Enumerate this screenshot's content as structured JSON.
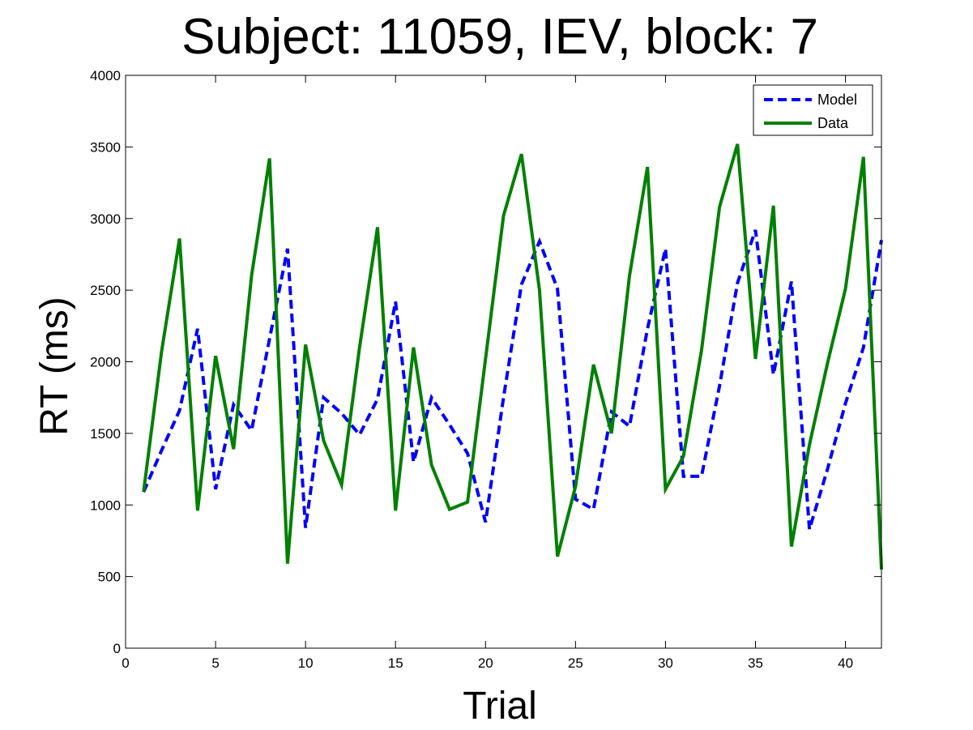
{
  "chart_data": {
    "type": "line",
    "title": "Subject: 11059, IEV, block: 7",
    "xlabel": "Trial",
    "ylabel": "RT (ms)",
    "xlim": [
      0,
      42
    ],
    "ylim": [
      0,
      4000
    ],
    "xticks": [
      0,
      5,
      10,
      15,
      20,
      25,
      30,
      35,
      40
    ],
    "yticks": [
      0,
      500,
      1000,
      1500,
      2000,
      2500,
      3000,
      3500,
      4000
    ],
    "grid": false,
    "legend_position": "top-right",
    "x": [
      1,
      2,
      3,
      4,
      5,
      6,
      7,
      8,
      9,
      10,
      11,
      12,
      13,
      14,
      15,
      16,
      17,
      18,
      19,
      20,
      21,
      22,
      23,
      24,
      25,
      26,
      27,
      28,
      29,
      30,
      31,
      32,
      33,
      34,
      35,
      36,
      37,
      38,
      39,
      40,
      41,
      42
    ],
    "series": [
      {
        "name": "Model",
        "color": "#0000ff",
        "style": "dashed",
        "values": [
          1090,
          1380,
          1660,
          2230,
          1110,
          1700,
          1520,
          2160,
          2790,
          840,
          1750,
          1640,
          1490,
          1740,
          2420,
          1300,
          1750,
          1560,
          1360,
          880,
          1750,
          2540,
          2840,
          2510,
          1040,
          970,
          1650,
          1550,
          2230,
          2790,
          1200,
          1200,
          1830,
          2550,
          2920,
          1910,
          2560,
          830,
          1250,
          1710,
          2100,
          2850
        ]
      },
      {
        "name": "Data",
        "color": "#008000",
        "style": "solid",
        "values": [
          1090,
          2070,
          2860,
          960,
          2040,
          1390,
          2600,
          3420,
          590,
          2120,
          1450,
          1140,
          2100,
          2940,
          960,
          2100,
          1280,
          970,
          1020,
          2020,
          3020,
          3450,
          2500,
          640,
          1130,
          1980,
          1500,
          2600,
          3360,
          1110,
          1340,
          2080,
          3080,
          3520,
          2020,
          3090,
          710,
          1420,
          1990,
          2510,
          3430,
          550
        ]
      }
    ]
  }
}
